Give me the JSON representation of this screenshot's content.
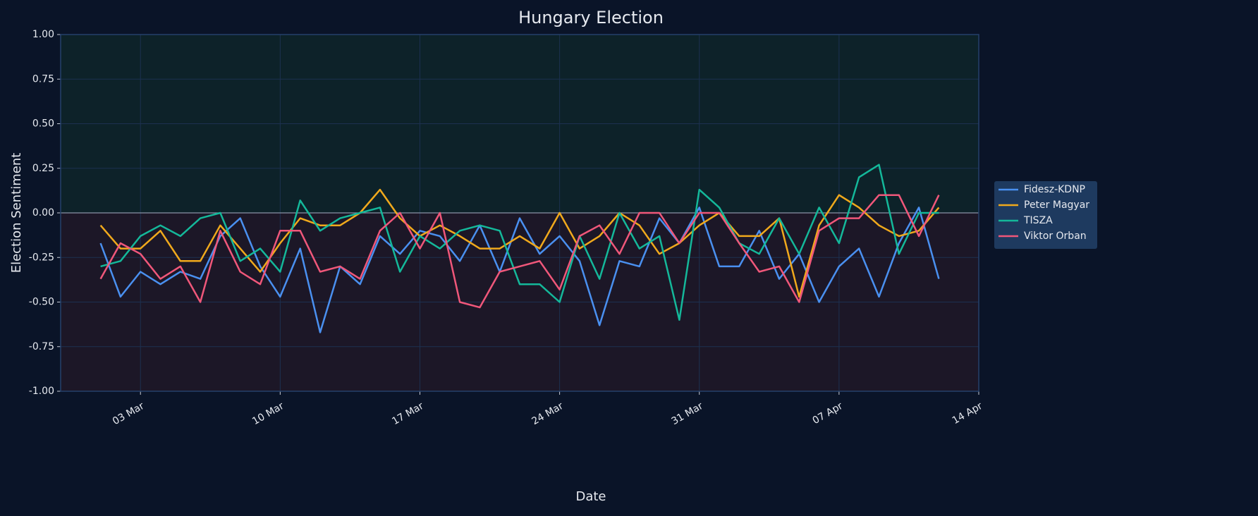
{
  "chart_data": {
    "type": "line",
    "title": "Hungary Election",
    "xlabel": "Date",
    "ylabel": "Election Sentiment",
    "x": [
      "01 Mar",
      "02 Mar",
      "03 Mar",
      "04 Mar",
      "05 Mar",
      "06 Mar",
      "07 Mar",
      "08 Mar",
      "09 Mar",
      "10 Mar",
      "11 Mar",
      "12 Mar",
      "13 Mar",
      "14 Mar",
      "15 Mar",
      "16 Mar",
      "17 Mar",
      "18 Mar",
      "19 Mar",
      "20 Mar",
      "21 Mar",
      "22 Mar",
      "23 Mar",
      "24 Mar",
      "25 Mar",
      "26 Mar",
      "27 Mar",
      "28 Mar",
      "29 Mar",
      "30 Mar",
      "31 Mar",
      "01 Apr",
      "02 Apr",
      "03 Apr",
      "04 Apr",
      "05 Apr",
      "06 Apr",
      "07 Apr",
      "08 Apr",
      "09 Apr",
      "10 Apr",
      "11 Apr",
      "12 Apr"
    ],
    "series": [
      {
        "name": "Fidesz-KDNP",
        "color": "#4a90f0",
        "values": [
          -0.17,
          -0.47,
          -0.33,
          -0.4,
          -0.33,
          -0.37,
          -0.13,
          -0.03,
          -0.3,
          -0.47,
          -0.2,
          -0.67,
          -0.3,
          -0.4,
          -0.13,
          -0.23,
          -0.1,
          -0.13,
          -0.27,
          -0.07,
          -0.33,
          -0.03,
          -0.23,
          -0.13,
          -0.27,
          -0.63,
          -0.27,
          -0.3,
          -0.03,
          -0.17,
          0.03,
          -0.3,
          -0.3,
          -0.1,
          -0.37,
          -0.23,
          -0.5,
          -0.3,
          -0.2,
          -0.47,
          -0.17,
          0.03,
          -0.37
        ]
      },
      {
        "name": "Peter Magyar",
        "color": "#f0a91c",
        "values": [
          -0.07,
          -0.2,
          -0.2,
          -0.1,
          -0.27,
          -0.27,
          -0.07,
          -0.2,
          -0.33,
          -0.17,
          -0.03,
          -0.07,
          -0.07,
          0.0,
          0.13,
          -0.03,
          -0.13,
          -0.07,
          -0.13,
          -0.2,
          -0.2,
          -0.13,
          -0.2,
          0.0,
          -0.2,
          -0.13,
          0.0,
          -0.07,
          -0.23,
          -0.17,
          -0.07,
          0.0,
          -0.13,
          -0.13,
          -0.03,
          -0.47,
          -0.07,
          0.1,
          0.03,
          -0.07,
          -0.13,
          -0.1,
          0.03
        ]
      },
      {
        "name": "TISZA",
        "color": "#14b89a",
        "values": [
          -0.3,
          -0.27,
          -0.13,
          -0.07,
          -0.13,
          -0.03,
          0.0,
          -0.27,
          -0.2,
          -0.33,
          0.07,
          -0.1,
          -0.03,
          0.0,
          0.03,
          -0.33,
          -0.13,
          -0.2,
          -0.1,
          -0.07,
          -0.1,
          -0.4,
          -0.4,
          -0.5,
          -0.13,
          -0.37,
          0.0,
          -0.2,
          -0.13,
          -0.6,
          0.13,
          0.03,
          -0.17,
          -0.23,
          -0.03,
          -0.23,
          0.03,
          -0.17,
          0.2,
          0.27,
          -0.23,
          0.0,
          0.0
        ]
      },
      {
        "name": "Viktor Orban",
        "color": "#f0577a",
        "values": [
          -0.37,
          -0.17,
          -0.23,
          -0.37,
          -0.3,
          -0.5,
          -0.1,
          -0.33,
          -0.4,
          -0.1,
          -0.1,
          -0.33,
          -0.3,
          -0.37,
          -0.1,
          0.0,
          -0.2,
          0.0,
          -0.5,
          -0.53,
          -0.33,
          -0.3,
          -0.27,
          -0.43,
          -0.13,
          -0.07,
          -0.23,
          0.0,
          0.0,
          -0.17,
          0.0,
          0.0,
          -0.17,
          -0.33,
          -0.3,
          -0.5,
          -0.1,
          -0.03,
          -0.03,
          0.1,
          0.1,
          -0.13,
          0.1
        ]
      }
    ],
    "xlim": [
      "28 Feb",
      "14 Apr"
    ],
    "xticks": [
      "03 Mar",
      "10 Mar",
      "17 Mar",
      "24 Mar",
      "31 Mar",
      "07 Apr",
      "14 Apr"
    ],
    "ylim": [
      -1,
      1
    ],
    "yticks": [
      {
        "value": -1,
        "label": "-1.00"
      },
      {
        "value": -0.75,
        "label": "-0.75"
      },
      {
        "value": -0.5,
        "label": "-0.50"
      },
      {
        "value": -0.25,
        "label": "-0.25"
      },
      {
        "value": 0,
        "label": "0.00"
      },
      {
        "value": 0.25,
        "label": "0.25"
      },
      {
        "value": 0.5,
        "label": "0.50"
      },
      {
        "value": 0.75,
        "label": "0.75"
      },
      {
        "value": 1,
        "label": "1.00"
      }
    ],
    "grid": true,
    "legend": "right"
  }
}
